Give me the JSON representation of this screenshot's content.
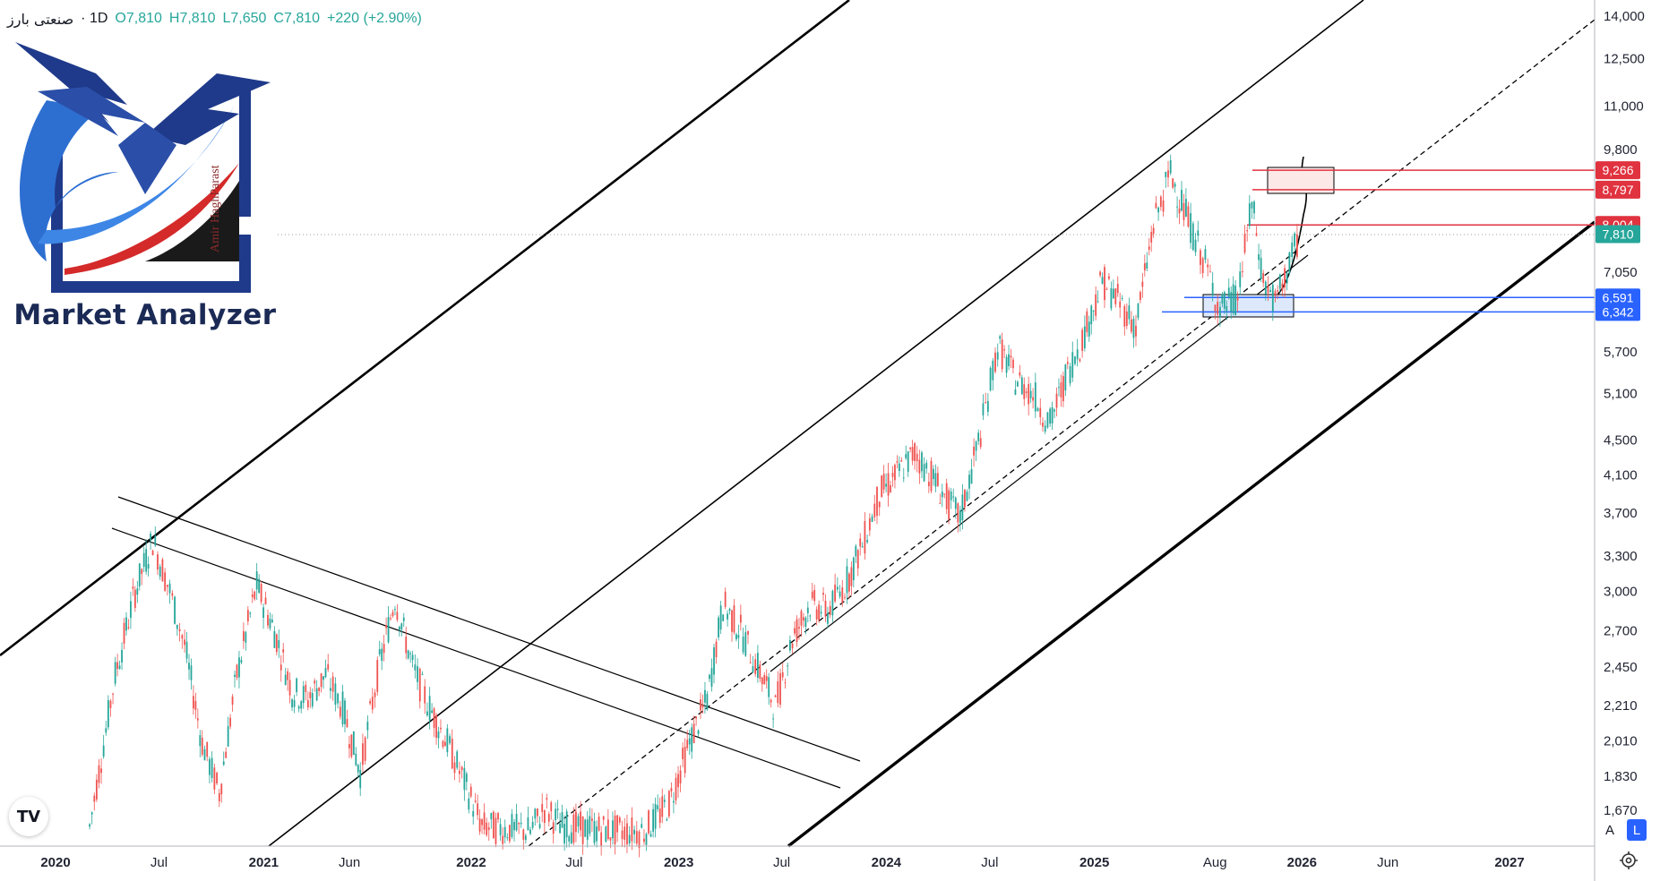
{
  "header": {
    "symbol": "صنعتی بارز",
    "interval": "1D",
    "open": "O7,810",
    "high": "H7,810",
    "low": "L7,650",
    "close": "C7,810",
    "change": "+220 (+2.90%)"
  },
  "logo": {
    "brand": "Market Analyzer",
    "author": "Amir HaghParast"
  },
  "tradingview_mark": "TV",
  "scale_buttons": {
    "auto": "A",
    "log": "L"
  },
  "colors": {
    "resistance": "#e0323f",
    "support": "#2962ff",
    "last_price": "#26a69a",
    "trendline": "#000000",
    "grid": "#ffffff"
  },
  "chart_data": {
    "type": "candlestick",
    "title": "",
    "y_scale": "log",
    "ylim": [
      1560,
      14200
    ],
    "xlim": [
      "2020-01-01",
      "2027-09-01"
    ],
    "price_axis_ticks": [
      "14,000",
      "12,500",
      "11,000",
      "9,800",
      "8,800",
      "7,050",
      "5,700",
      "5,100",
      "4,500",
      "4,100",
      "3,700",
      "3,300",
      "3,000",
      "2,700",
      "2,450",
      "2,210",
      "2,010",
      "1,830",
      "1,670"
    ],
    "time_axis_ticks": [
      {
        "label": "2020",
        "year": true
      },
      {
        "label": "Jul",
        "year": false
      },
      {
        "label": "2021",
        "year": true
      },
      {
        "label": "Jun",
        "year": false
      },
      {
        "label": "2022",
        "year": true
      },
      {
        "label": "Jul",
        "year": false
      },
      {
        "label": "2023",
        "year": true
      },
      {
        "label": "Jul",
        "year": false
      },
      {
        "label": "2024",
        "year": true
      },
      {
        "label": "Jul",
        "year": false
      },
      {
        "label": "2025",
        "year": true
      },
      {
        "label": "Aug",
        "year": false
      },
      {
        "label": "2026",
        "year": true
      },
      {
        "label": "Jun",
        "year": false
      },
      {
        "label": "2027",
        "year": true
      }
    ],
    "price_tags": [
      {
        "label": "9,266",
        "kind": "resistance"
      },
      {
        "label": "8,797",
        "kind": "resistance"
      },
      {
        "label": "8,004",
        "kind": "resistance"
      },
      {
        "label": "7,810",
        "kind": "last"
      },
      {
        "label": "6,591",
        "kind": "support"
      },
      {
        "label": "6,342",
        "kind": "support"
      }
    ],
    "series": [
      {
        "values": [
          [
            "2020-03-01",
            1600
          ],
          [
            "2020-04-15",
            2400
          ],
          [
            "2020-05-20",
            3000
          ],
          [
            "2020-06-20",
            3450
          ],
          [
            "2020-07-20",
            3000
          ],
          [
            "2020-08-15",
            2600
          ],
          [
            "2020-09-15",
            2000
          ],
          [
            "2020-10-15",
            1750
          ],
          [
            "2020-11-15",
            2400
          ],
          [
            "2020-12-20",
            3050
          ],
          [
            "2021-01-20",
            2700
          ],
          [
            "2021-02-20",
            2300
          ],
          [
            "2021-03-20",
            2250
          ],
          [
            "2021-04-20",
            2400
          ],
          [
            "2021-05-20",
            2200
          ],
          [
            "2021-06-20",
            1850
          ],
          [
            "2021-07-20",
            2400
          ],
          [
            "2021-08-20",
            2950
          ],
          [
            "2021-09-20",
            2450
          ],
          [
            "2021-10-20",
            2200
          ],
          [
            "2021-11-20",
            2000
          ],
          [
            "2021-12-20",
            1800
          ],
          [
            "2022-01-20",
            1600
          ],
          [
            "2022-04-15",
            1580
          ],
          [
            "2022-05-10",
            1680
          ],
          [
            "2022-06-10",
            1600
          ],
          [
            "2022-09-15",
            1580
          ],
          [
            "2022-11-01",
            1580
          ],
          [
            "2022-12-15",
            1700
          ],
          [
            "2023-01-20",
            2000
          ],
          [
            "2023-02-20",
            2250
          ],
          [
            "2023-03-20",
            2900
          ],
          [
            "2023-04-20",
            2700
          ],
          [
            "2023-05-20",
            2450
          ],
          [
            "2023-06-20",
            2200
          ],
          [
            "2023-07-20",
            2650
          ],
          [
            "2023-08-20",
            2900
          ],
          [
            "2023-09-20",
            2850
          ],
          [
            "2023-10-20",
            3050
          ],
          [
            "2023-11-20",
            3400
          ],
          [
            "2023-12-20",
            3900
          ],
          [
            "2024-01-20",
            4100
          ],
          [
            "2024-02-20",
            4350
          ],
          [
            "2024-03-20",
            4100
          ],
          [
            "2024-04-20",
            3800
          ],
          [
            "2024-05-10",
            3650
          ],
          [
            "2024-06-15",
            4600
          ],
          [
            "2024-07-15",
            5800
          ],
          [
            "2024-08-15",
            5300
          ],
          [
            "2024-09-15",
            5100
          ],
          [
            "2024-10-15",
            4700
          ],
          [
            "2024-11-15",
            5400
          ],
          [
            "2024-12-15",
            6000
          ],
          [
            "2025-01-15",
            6900
          ],
          [
            "2025-02-15",
            6500
          ],
          [
            "2025-03-15",
            6100
          ],
          [
            "2025-04-15",
            8000
          ],
          [
            "2025-05-15",
            9200
          ],
          [
            "2025-06-15",
            8100
          ],
          [
            "2025-07-15",
            7200
          ],
          [
            "2025-08-10",
            6400
          ],
          [
            "2025-09-10",
            6600
          ],
          [
            "2025-10-05",
            8500
          ],
          [
            "2025-10-25",
            6900
          ],
          [
            "2025-11-15",
            6500
          ],
          [
            "2025-12-10",
            7200
          ],
          [
            "2025-12-28",
            7810
          ]
        ]
      }
    ]
  }
}
